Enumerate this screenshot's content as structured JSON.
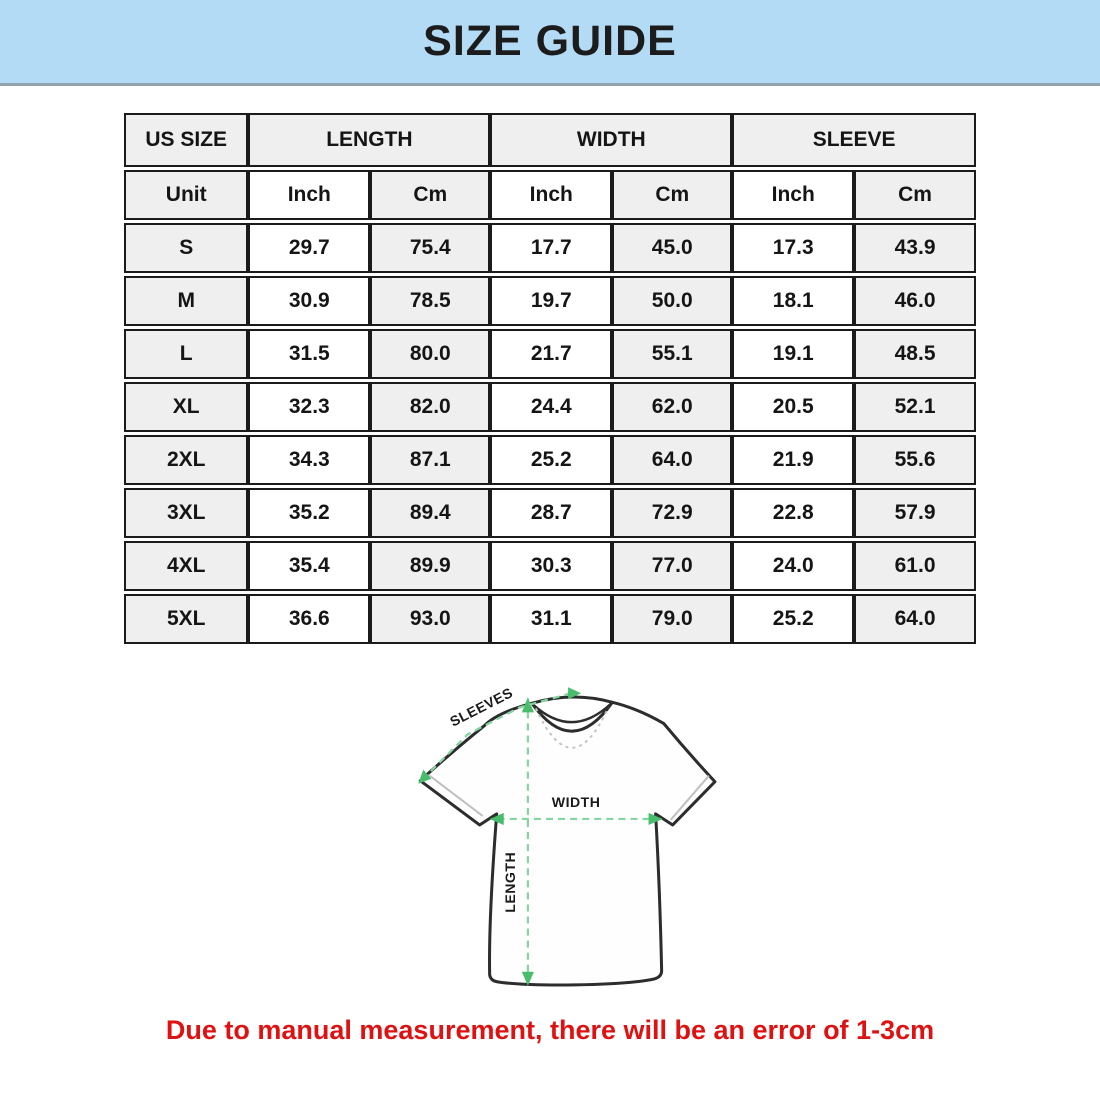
{
  "header": {
    "title": "SIZE GUIDE",
    "banner_color": "#b4dbf6"
  },
  "table": {
    "groups": [
      {
        "label": "US SIZE",
        "span": 1
      },
      {
        "label": "LENGTH",
        "span": 2
      },
      {
        "label": "WIDTH",
        "span": 2
      },
      {
        "label": "SLEEVE",
        "span": 2
      }
    ],
    "unit_row": [
      "Unit",
      "Inch",
      "Cm",
      "Inch",
      "Cm",
      "Inch",
      "Cm"
    ],
    "rows": [
      [
        "S",
        "29.7",
        "75.4",
        "17.7",
        "45.0",
        "17.3",
        "43.9"
      ],
      [
        "M",
        "30.9",
        "78.5",
        "19.7",
        "50.0",
        "18.1",
        "46.0"
      ],
      [
        "L",
        "31.5",
        "80.0",
        "21.7",
        "55.1",
        "19.1",
        "48.5"
      ],
      [
        "XL",
        "32.3",
        "82.0",
        "24.4",
        "62.0",
        "20.5",
        "52.1"
      ],
      [
        "2XL",
        "34.3",
        "87.1",
        "25.2",
        "64.0",
        "21.9",
        "55.6"
      ],
      [
        "3XL",
        "35.2",
        "89.4",
        "28.7",
        "72.9",
        "22.8",
        "57.9"
      ],
      [
        "4XL",
        "35.4",
        "89.9",
        "30.3",
        "77.0",
        "24.0",
        "61.0"
      ],
      [
        "5XL",
        "36.6",
        "93.0",
        "31.1",
        "79.0",
        "25.2",
        "64.0"
      ]
    ],
    "cell_gray": "#efefef"
  },
  "diagram": {
    "labels": {
      "sleeves": "SLEEVES",
      "width": "WIDTH",
      "length": "LENGTH"
    },
    "dash_color": "#85d5a0",
    "arrow_color": "#48bd6b"
  },
  "footer": {
    "note": "Due to manual measurement, there will be an error of 1-3cm",
    "note_color": "#dd1212"
  }
}
